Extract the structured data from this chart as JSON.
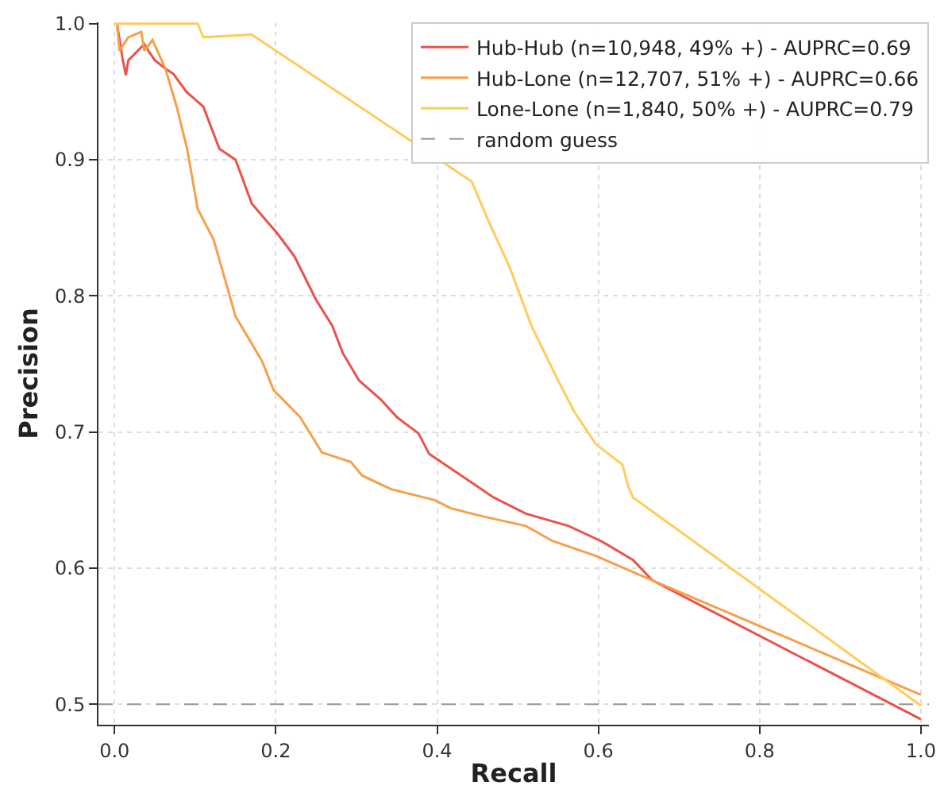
{
  "chart_data": {
    "type": "line",
    "xlabel": "Recall",
    "ylabel": "Precision",
    "xlim": [
      -0.02,
      1.01
    ],
    "ylim": [
      0.485,
      1.001
    ],
    "xticks": [
      {
        "value": 0,
        "label": "0.0"
      },
      0.2,
      0.4,
      0.6,
      0.8,
      {
        "value": 1,
        "label": "1.0"
      }
    ],
    "yticks": [
      {
        "value": 0.5,
        "label": "0.5"
      },
      0.6,
      0.7,
      0.8,
      0.9,
      {
        "value": 1,
        "label": "1.0"
      }
    ],
    "grid": true,
    "legend": "top right",
    "marker": "none",
    "series": [
      {
        "name": "Hub-Hub (n=10,948, 49% +) - AUPRC=0.69",
        "color": "#e8534a",
        "x": [
          0.003,
          0.01,
          0.014,
          0.017,
          0.037,
          0.043,
          0.05,
          0.063,
          0.073,
          0.089,
          0.11,
          0.13,
          0.15,
          0.17,
          0.203,
          0.223,
          0.25,
          0.27,
          0.283,
          0.303,
          0.33,
          0.35,
          0.377,
          0.39,
          0.43,
          0.47,
          0.51,
          0.563,
          0.603,
          0.643,
          0.667,
          1.0
        ],
        "values": [
          1.0,
          0.974,
          0.962,
          0.973,
          0.985,
          0.979,
          0.973,
          0.967,
          0.963,
          0.95,
          0.939,
          0.908,
          0.9,
          0.868,
          0.845,
          0.829,
          0.797,
          0.778,
          0.758,
          0.738,
          0.724,
          0.711,
          0.699,
          0.684,
          0.668,
          0.652,
          0.64,
          0.631,
          0.62,
          0.606,
          0.591,
          0.489
        ]
      },
      {
        "name": "Hub-Lone (n=12,707, 51% +) - AUPRC=0.66",
        "color": "#f5a04a",
        "x": [
          0.003,
          0.006,
          0.017,
          0.033,
          0.037,
          0.047,
          0.063,
          0.077,
          0.09,
          0.103,
          0.123,
          0.15,
          0.183,
          0.197,
          0.23,
          0.257,
          0.293,
          0.307,
          0.343,
          0.397,
          0.417,
          0.457,
          0.51,
          0.543,
          0.597,
          0.667,
          1.0
        ],
        "values": [
          1.0,
          0.98,
          0.99,
          0.994,
          0.98,
          0.988,
          0.967,
          0.939,
          0.908,
          0.864,
          0.841,
          0.785,
          0.752,
          0.731,
          0.711,
          0.685,
          0.678,
          0.668,
          0.658,
          0.65,
          0.644,
          0.638,
          0.631,
          0.62,
          0.609,
          0.591,
          0.507
        ]
      },
      {
        "name": "Lone-Lone (n=1,840, 50% +) - AUPRC=0.79",
        "color": "#ffcc5c",
        "x": [
          0.0,
          0.103,
          0.11,
          0.17,
          0.443,
          0.463,
          0.49,
          0.517,
          0.55,
          0.57,
          0.597,
          0.63,
          0.637,
          0.643,
          1.0
        ],
        "values": [
          1.0,
          1.0,
          0.99,
          0.992,
          0.884,
          0.856,
          0.821,
          0.778,
          0.738,
          0.715,
          0.691,
          0.676,
          0.66,
          0.652,
          0.499
        ]
      },
      {
        "name": "random guess",
        "color": "#999999",
        "line_style": "dashed",
        "x": [
          -0.02,
          1.01
        ],
        "values": [
          0.5,
          0.5
        ]
      }
    ]
  }
}
